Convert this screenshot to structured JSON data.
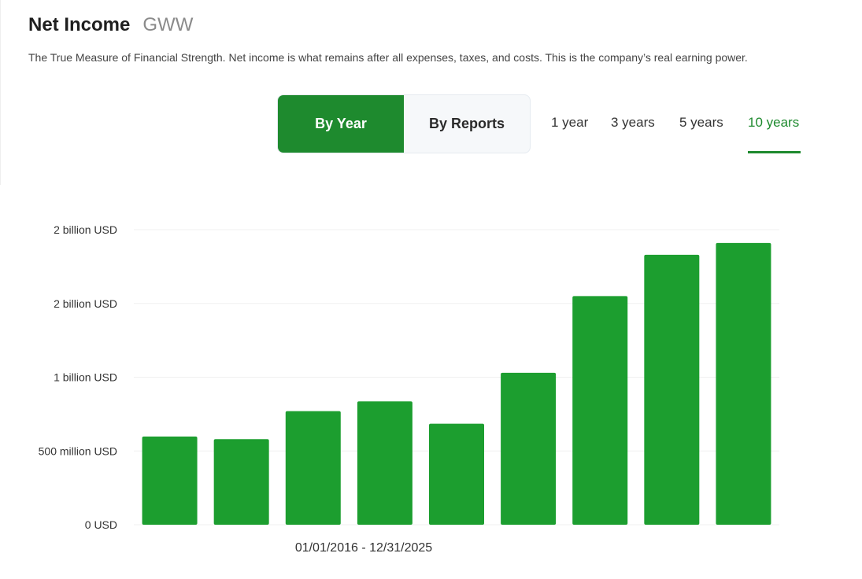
{
  "header": {
    "title": "Net Income",
    "ticker": "GWW",
    "description": "The True Measure of Financial Strength. Net income is what remains after all expenses, taxes, and costs. This is the company’s real earning power."
  },
  "view_toggle": {
    "options": [
      {
        "label": "By Year",
        "active": true
      },
      {
        "label": "By Reports",
        "active": false
      }
    ]
  },
  "range_tabs": [
    {
      "label": "1 year",
      "active": false
    },
    {
      "label": "3 years",
      "active": false
    },
    {
      "label": "5 years",
      "active": false
    },
    {
      "label": "10 years",
      "active": true
    }
  ],
  "colors": {
    "accent": "#1e8a2e",
    "bar": "#1c9e2f",
    "grid": "#f0f0f0"
  },
  "chart_data": {
    "type": "bar",
    "title": "",
    "xlabel": "",
    "ylabel": "",
    "x_range_label": "01/01/2016 - 12/31/2025",
    "ylim": [
      0,
      2000000000
    ],
    "y_ticks": [
      {
        "value": 0,
        "label": "0 USD"
      },
      {
        "value": 500000000,
        "label": "500 million USD"
      },
      {
        "value": 1000000000,
        "label": "1 billion USD"
      },
      {
        "value": 1500000000,
        "label": "2 billion USD"
      },
      {
        "value": 2000000000,
        "label": "2 billion USD"
      }
    ],
    "grid": true,
    "series": [
      {
        "values": [
          598000000,
          580000000,
          770000000,
          836000000,
          685000000,
          1030000000,
          1550000000,
          1830000000,
          1910000000
        ]
      }
    ]
  }
}
